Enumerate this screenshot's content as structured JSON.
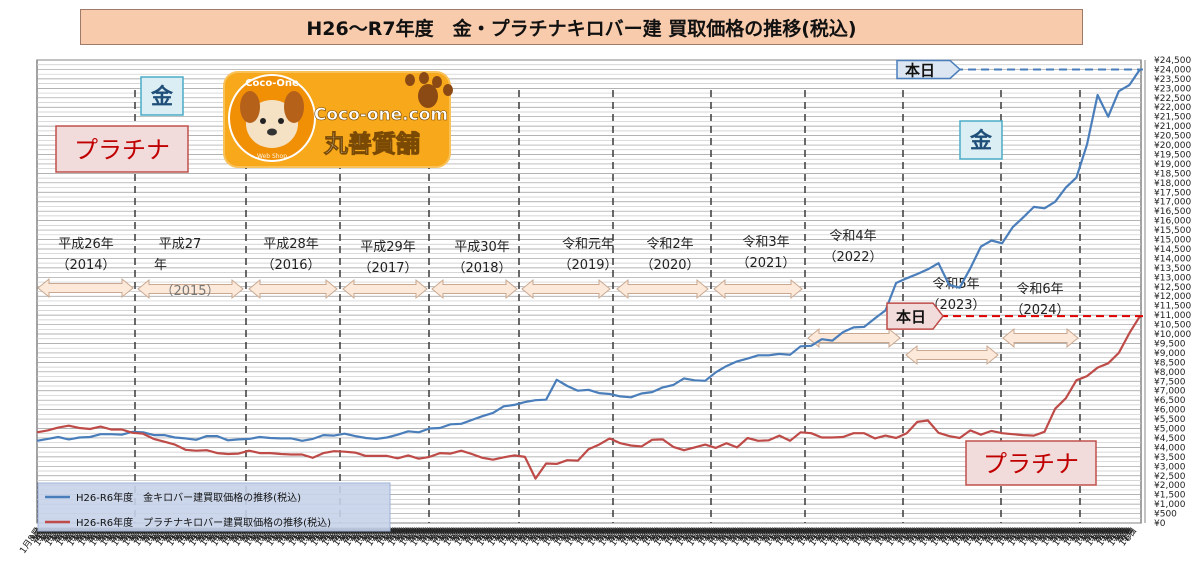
{
  "title": "H26～R7年度　金・プラチナキロバー建 買取価格の推移(税込)",
  "labels": {
    "gold_box_1": "金",
    "gold_box_2": "金",
    "platinum_box_1": "プラチナ",
    "platinum_box_2": "プラチナ",
    "today_1": "本日",
    "today_2": "本日"
  },
  "logo": {
    "arc_text": "Coco-One",
    "name": "Coco-one.com",
    "shop": "丸善質舗",
    "small_text": "Web Shop"
  },
  "periods": [
    {
      "line1": "平成26年",
      "line2": "（2014）"
    },
    {
      "line1": "平成27",
      "line2": "年",
      "line3": "（2015）"
    },
    {
      "line1": "平成28年",
      "line2": "（2016）"
    },
    {
      "line1": "平成29年",
      "line2": "（2017）"
    },
    {
      "line1": "平成30年",
      "line2": "（2018）"
    },
    {
      "line1": "令和元年",
      "line2": "（2019）"
    },
    {
      "line1": "令和2年",
      "line2": "（2020）"
    },
    {
      "line1": "令和3年",
      "line2": "（2021）"
    },
    {
      "line1": "令和4年",
      "line2": "（2022）"
    },
    {
      "line1": "令和5年",
      "line2": "（2023）"
    },
    {
      "line1": "令和6年",
      "line2": "（2024）"
    }
  ],
  "colors": {
    "gold_line": "#4a7ebb",
    "platinum_line": "#be4b48",
    "title_bg": "#f8cbad",
    "arrow_fill": "#fde9d9",
    "gold_label": "#1f4e79",
    "platinum_label": "#c00000"
  },
  "chart_data": {
    "type": "line",
    "y_ticks": [
      "¥0",
      "¥500",
      "¥1,000",
      "¥1,500",
      "¥2,000",
      "¥2,500",
      "¥3,000",
      "¥3,500",
      "¥4,000",
      "¥4,500",
      "¥5,000",
      "¥5,500",
      "¥6,000",
      "¥6,500",
      "¥7,000",
      "¥7,500",
      "¥8,000",
      "¥8,500",
      "¥9,000",
      "¥9,500",
      "¥10,000",
      "¥10,500",
      "¥11,000",
      "¥11,500",
      "¥12,000",
      "¥12,500",
      "¥13,000",
      "¥13,500",
      "¥14,000",
      "¥14,500",
      "¥15,000",
      "¥15,500",
      "¥16,000",
      "¥16,500",
      "¥17,000",
      "¥17,500",
      "¥18,000",
      "¥18,500",
      "¥19,000",
      "¥19,500",
      "¥20,000",
      "¥20,500",
      "¥21,000",
      "¥21,500",
      "¥22,000",
      "¥22,500",
      "¥23,000",
      "¥23,500",
      "¥24,000",
      "¥24,500"
    ],
    "ylim": [
      0,
      24500
    ],
    "x_tick_labels": [
      "1月8日",
      "3月",
      "5月",
      "7月",
      "9月",
      "11月",
      "1月",
      "3月",
      "5月",
      "7月",
      "9月",
      "11月",
      "1月",
      "3月",
      "5月",
      "7月",
      "9月",
      "11月",
      "1月",
      "3月",
      "5月",
      "7月",
      "9月",
      "11月",
      "1月",
      "3月",
      "5月",
      "7月",
      "9月",
      "11月",
      "1月",
      "3月",
      "5月",
      "7月",
      "9月",
      "11月",
      "1月",
      "3月",
      "5月",
      "7月",
      "9月",
      "11月",
      "1月",
      "3月",
      "5月",
      "7月",
      "9月",
      "11月",
      "1月",
      "3月",
      "5月",
      "7月",
      "9月",
      "11月",
      "1月",
      "3月",
      "5月",
      "7月",
      "9月",
      "11月",
      "1月",
      "3月",
      "5月",
      "7月",
      "9月",
      "11月",
      "1月",
      "3月",
      "5月",
      "7月",
      "9月",
      "11月",
      "1月",
      "3月",
      "5月",
      "7月",
      "9月",
      "11月",
      "1月",
      "3月",
      "5月",
      "7月",
      "9月",
      "11月",
      "1月",
      "3月",
      "5月",
      "7月",
      "9月",
      "11月",
      "1月",
      "3月",
      "5月",
      "7月",
      "9月",
      "11月",
      "1月",
      "3月",
      "5月",
      "7月",
      "9月",
      "11月",
      "1月",
      "3月",
      "5月",
      "7月",
      "9月",
      "11月",
      "1月",
      "3月",
      "5月",
      "7月",
      "9月",
      "11月",
      "1月",
      "3月",
      "5月",
      "7月",
      "9月",
      "11月",
      "1月",
      "3月",
      "5月",
      "7月",
      "9月",
      "11月",
      "1月",
      "3月",
      "5月",
      "7月",
      "9月",
      "11月",
      "1月",
      "3月",
      "5月",
      "7月",
      "9月",
      "11月",
      "1月",
      "3月",
      "5月",
      "7月",
      "9月",
      "11月",
      "1月",
      "3月",
      "5月",
      "7月",
      "9月",
      "11月",
      "1月",
      "3月",
      "5月",
      "7月",
      "9月",
      "11月",
      "1月",
      "3月",
      "5月",
      "7月",
      "9月",
      "11月",
      "1月",
      "3月",
      "5月",
      "7月",
      "9月",
      "11月",
      "1月",
      "3月",
      "5月",
      "7月",
      "9月",
      "11月",
      "1月",
      "3月",
      "5月",
      "7月",
      "9月",
      "11月",
      "1月",
      "3月",
      "5月",
      "7月",
      "9月",
      "11月",
      "1月",
      "3月",
      "5月",
      "7月",
      "9月",
      "11月",
      "1月",
      "3月",
      "5月",
      "7月",
      "9月",
      "11月",
      "1月",
      "3月",
      "5月",
      "7月",
      "9月",
      "11月",
      "1月",
      "3月",
      "5月",
      "7月",
      "9月",
      "11月",
      "1月",
      "3月",
      "5月",
      "7月",
      "9月",
      "11月",
      "1月",
      "3月",
      "5月",
      "7月",
      "9月",
      "11月",
      "1月",
      "3月",
      "5月",
      "7月",
      "9月",
      "11月",
      "1月",
      "3月",
      "5月",
      "7月",
      "9月",
      "11月",
      "1月",
      "3月",
      "5月",
      "7月",
      "9月",
      "11月",
      "1月",
      "3月",
      "5月",
      "7月",
      "9月",
      "11月",
      "1月",
      "3月",
      "5月",
      "7月",
      "9月",
      "11月",
      "1月",
      "3月",
      "5月",
      "7月",
      "9月",
      "11月",
      "1月",
      "3月",
      "5月",
      "7月",
      "9月",
      "11月",
      "1月",
      "3月",
      "5月",
      "7月",
      "9月",
      "11月",
      "1月",
      "3月",
      "5月",
      "7月",
      "9月",
      "11月",
      "1月",
      "3月",
      "5月",
      "7月",
      "9月",
      "11月",
      "1月",
      "3月",
      "5月",
      "7月",
      "9月",
      "11月",
      "1月",
      "3月",
      "5月",
      "7月",
      "9月",
      "11月",
      "1月",
      "3月",
      "5月",
      "7月",
      "9月",
      "11月",
      "1月",
      "3月",
      "5月",
      "7月",
      "9月",
      "11月",
      "1月",
      "3月",
      "5月",
      "7月",
      "9月",
      "11月",
      "1月",
      "3月",
      "5月",
      "7月",
      "9月",
      "11月",
      "1月",
      "3月",
      "5月",
      "7月",
      "9月",
      "11月",
      "1月",
      "3月",
      "5月",
      "7月",
      "9月",
      "11月",
      "1月",
      "3月",
      "5月",
      "7月",
      "9月",
      "11月",
      "1月",
      "3月",
      "5月",
      "7月",
      "9月",
      "11月",
      "1月",
      "3月",
      "5月",
      "7月",
      "9月",
      "11月",
      "1月",
      "3月",
      "5月",
      "7月",
      "9月",
      "11月",
      "1月",
      "3月",
      "5月",
      "7月",
      "9月",
      "11月",
      "1月",
      "3月",
      "5月",
      "7月",
      "9月",
      "11月",
      "1月",
      "3月",
      "5月",
      "7月",
      "9月",
      "11月",
      "1月",
      "3月",
      "5月",
      "7月",
      "9月",
      "11月",
      "1月",
      "3月",
      "5月",
      "7月",
      "9月",
      "11月",
      "1月",
      "3月",
      "5月",
      "7月",
      "9月",
      "11月",
      "1月",
      "3月",
      "5月",
      "7月",
      "9月",
      "11月",
      "1月",
      "3月",
      "5月",
      "7月",
      "9月",
      "11月",
      "1月",
      "3月",
      "5月",
      "7月",
      "9月",
      "11月",
      "1月",
      "3月",
      "5月",
      "7月",
      "9月",
      "11月",
      "1月",
      "3月",
      "5月",
      "7月",
      "9月",
      "11月",
      "1月",
      "3月",
      "5月",
      "7月",
      "9月",
      "11月",
      "1月",
      "3月",
      "5月",
      "7月",
      "9月",
      "11月",
      "1月",
      "3月",
      "5月",
      "7月",
      "9月",
      "11月",
      "1月",
      "3月",
      "5月",
      "7月",
      "9月",
      "11月",
      "1月",
      "3月",
      "5月",
      "7月",
      "9月",
      "11月",
      "1月",
      "3月",
      "5月",
      "7月",
      "9月",
      "11月",
      "1月",
      "3月",
      "5月",
      "7月",
      "9月",
      "11月",
      "1月",
      "3月",
      "5月",
      "7月",
      "9月",
      "11月",
      "1月",
      "3月",
      "5月",
      "7月",
      "9月",
      "11月",
      "1月",
      "3月",
      "5月",
      "7月",
      "9月",
      "11月",
      "1月",
      "3月",
      "5月",
      "7月",
      "9月",
      "11月",
      "1月",
      "3月",
      "5月",
      "7月",
      "9月",
      "11月",
      "1月",
      "3月",
      "5月",
      "7月",
      "9月",
      "11月",
      "1月",
      "3月",
      "5月",
      "7月",
      "9月",
      "11月",
      "1月",
      "3月",
      "5月",
      "7月",
      "9月",
      "11月",
      "1月",
      "3月",
      "5月",
      "7月",
      "9月",
      "11月",
      "1月",
      "3月",
      "5月",
      "7月",
      "9月",
      "11月",
      "1月",
      "3月",
      "5月",
      "7月",
      "9月",
      "11月",
      "1月",
      "3月",
      "5月",
      "7月",
      "9月",
      "11月",
      "1月",
      "3月",
      "5月",
      "7月",
      "9月",
      "11月",
      "1月",
      "3月",
      "5月",
      "7月",
      "9月",
      "11月",
      "1月",
      "3月",
      "5月",
      "7月",
      "9月",
      "11月",
      "1月",
      "3月",
      "5月",
      "7月",
      "9月",
      "11月",
      "1月",
      "3月",
      "5月",
      "7月",
      "9月",
      "11月",
      "1月",
      "3月",
      "5月",
      "7月",
      "9月",
      "11月",
      "1月",
      "3月",
      "5月",
      "7月",
      "9月",
      "11月",
      "1月",
      "3月",
      "5月",
      "7月",
      "9月",
      "11月",
      "1月",
      "3月",
      "5月",
      "7月",
      "9月",
      "11月",
      "1月",
      "3月",
      "5月",
      "7月",
      "9月",
      "11月",
      "6日"
    ],
    "series": [
      {
        "name": "H26-R6年度　金キロバー建買取価格の推移(税込)",
        "color": "#4a7ebb",
        "values": [
          4350,
          4450,
          4500,
          4450,
          4500,
          4600,
          4700,
          4650,
          4700,
          4800,
          4850,
          4650,
          4600,
          4550,
          4450,
          4450,
          4600,
          4550,
          4400,
          4400,
          4500,
          4550,
          4450,
          4500,
          4450,
          4400,
          4450,
          4600,
          4650,
          4700,
          4650,
          4500,
          4400,
          4550,
          4650,
          4900,
          4800,
          4950,
          5050,
          5200,
          5300,
          5450,
          5600,
          5850,
          6150,
          6300,
          6400,
          6450,
          6550,
          7550,
          7300,
          7000,
          7000,
          6900,
          6800,
          6750,
          6650,
          6800,
          6950,
          7150,
          7350,
          7650,
          7500,
          7550,
          7950,
          8350,
          8550,
          8650,
          8900,
          8850,
          9000,
          8900,
          9300,
          9400,
          9700,
          9700,
          10100,
          10300,
          10400,
          10800,
          11300,
          12700,
          12900,
          13200,
          13400,
          13800,
          12600,
          12400,
          13500,
          14600,
          15000,
          14800,
          15600,
          16200,
          16700,
          16700,
          17000,
          17700,
          18300,
          20000,
          22700,
          21500,
          22800,
          23200,
          24000
        ]
      },
      {
        "name": "H26-R6年度　プラチナキロバー建買取価格の推移(税込)",
        "color": "#be4b48",
        "values": [
          4800,
          4950,
          5050,
          5100,
          5050,
          4950,
          5150,
          4950,
          4900,
          4800,
          4700,
          4500,
          4300,
          4100,
          3900,
          3800,
          3900,
          3700,
          3600,
          3700,
          3800,
          3750,
          3700,
          3600,
          3650,
          3600,
          3500,
          3700,
          3750,
          3800,
          3700,
          3600,
          3550,
          3500,
          3450,
          3550,
          3450,
          3500,
          3650,
          3700,
          3800,
          3700,
          3450,
          3300,
          3500,
          3550,
          3550,
          2350,
          3100,
          3150,
          3300,
          3350,
          3900,
          4100,
          4500,
          4200,
          4150,
          4050,
          4350,
          4450,
          4000,
          3900,
          4000,
          4100,
          4000,
          4200,
          4050,
          4500,
          4300,
          4400,
          4600,
          4400,
          4800,
          4700,
          4550,
          4500,
          4600,
          4750,
          4700,
          4500,
          4600,
          4550,
          4750,
          5300,
          5450,
          4750,
          4650,
          4500,
          4850,
          4700,
          4850,
          4800,
          4700,
          4600,
          4650,
          4800,
          6100,
          6600,
          7500,
          7800,
          8200,
          8500,
          9000,
          10000,
          10950
        ]
      }
    ]
  }
}
